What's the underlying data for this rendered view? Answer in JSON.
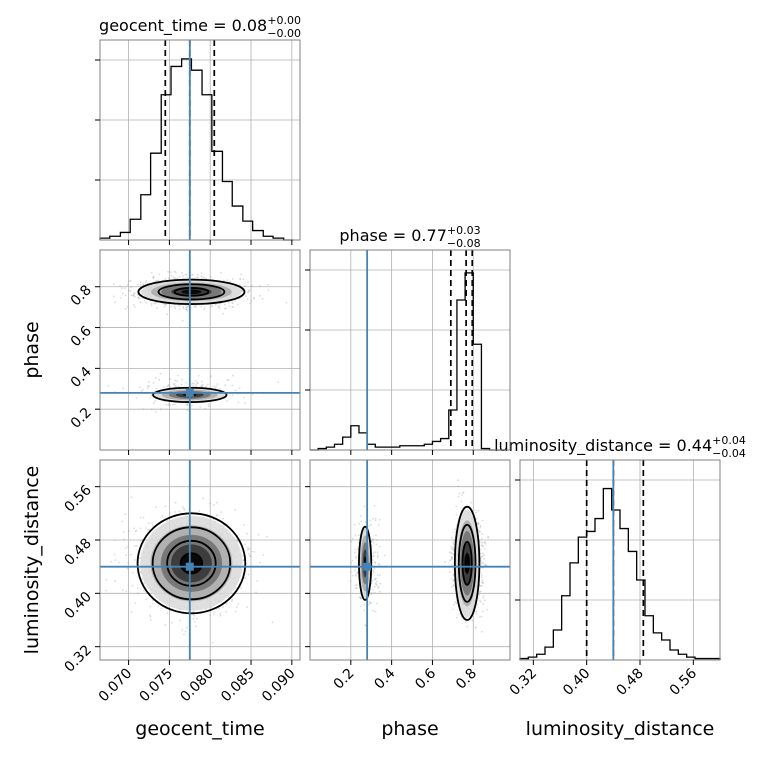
{
  "chart_data": {
    "type": "corner",
    "parameters": [
      "geocent_time",
      "phase",
      "luminosity_distance"
    ],
    "truths": {
      "geocent_time": 0.0775,
      "phase": 0.28,
      "luminosity_distance": 0.44
    },
    "titles": [
      {
        "name": "geocent_time",
        "value": "0.08",
        "upper": "+0.00",
        "lower": "−0.00"
      },
      {
        "name": "phase",
        "value": "0.77",
        "upper": "+0.03",
        "lower": "−0.08"
      },
      {
        "name": "luminosity_distance",
        "value": "0.44",
        "upper": "+0.04",
        "lower": "−0.04"
      }
    ],
    "axes": {
      "geocent_time": {
        "range": [
          0.0665,
          0.091
        ],
        "ticks": [
          "0.070",
          "0.075",
          "0.080",
          "0.085",
          "0.090"
        ]
      },
      "phase": {
        "range": [
          0.0,
          0.98
        ],
        "ticks": [
          "0.2",
          "0.4",
          "0.6",
          "0.8"
        ]
      },
      "luminosity_distance": {
        "range": [
          0.3,
          0.6
        ],
        "ticks": [
          "0.32",
          "0.40",
          "0.48",
          "0.56"
        ]
      }
    },
    "quantiles": {
      "geocent_time": [
        0.0745,
        0.0775,
        0.0805
      ],
      "phase": [
        0.69,
        0.765,
        0.795
      ],
      "luminosity_distance": [
        0.4,
        0.44,
        0.485
      ]
    },
    "histograms": {
      "geocent_time": {
        "edges": [
          0.0665,
          0.0677,
          0.069,
          0.0702,
          0.0715,
          0.0727,
          0.074,
          0.0752,
          0.0765,
          0.0777,
          0.079,
          0.0802,
          0.0815,
          0.0827,
          0.084,
          0.0852,
          0.0865,
          0.0877,
          0.089,
          0.0902
        ],
        "counts": [
          1,
          2,
          4,
          11,
          24,
          46,
          77,
          92,
          96,
          90,
          77,
          47,
          31,
          18,
          10,
          5,
          2,
          1,
          0
        ],
        "ymax": 106
      },
      "phase": {
        "edges": [
          0.0,
          0.04,
          0.08,
          0.12,
          0.16,
          0.2,
          0.24,
          0.28,
          0.32,
          0.36,
          0.4,
          0.44,
          0.48,
          0.52,
          0.56,
          0.6,
          0.64,
          0.68,
          0.72,
          0.76,
          0.8,
          0.84,
          0.88,
          0.92,
          0.96
        ],
        "counts": [
          0,
          1,
          2,
          4,
          9,
          17,
          12,
          4,
          2,
          2,
          2,
          3,
          3,
          3,
          4,
          6,
          8,
          28,
          105,
          124,
          74,
          1,
          0,
          0
        ],
        "ymax": 140
      },
      "luminosity_distance": {
        "edges": [
          0.3,
          0.3125,
          0.325,
          0.3375,
          0.35,
          0.3625,
          0.375,
          0.3875,
          0.4,
          0.4125,
          0.425,
          0.4375,
          0.45,
          0.4625,
          0.475,
          0.4875,
          0.5,
          0.5125,
          0.525,
          0.5375,
          0.55,
          0.5625,
          0.575,
          0.5875,
          0.6
        ],
        "counts": [
          1,
          2,
          4,
          9,
          21,
          45,
          68,
          86,
          90,
          99,
          120,
          105,
          92,
          76,
          56,
          31,
          19,
          14,
          7,
          4,
          2,
          1,
          1,
          1
        ],
        "ymax": 140
      }
    }
  }
}
